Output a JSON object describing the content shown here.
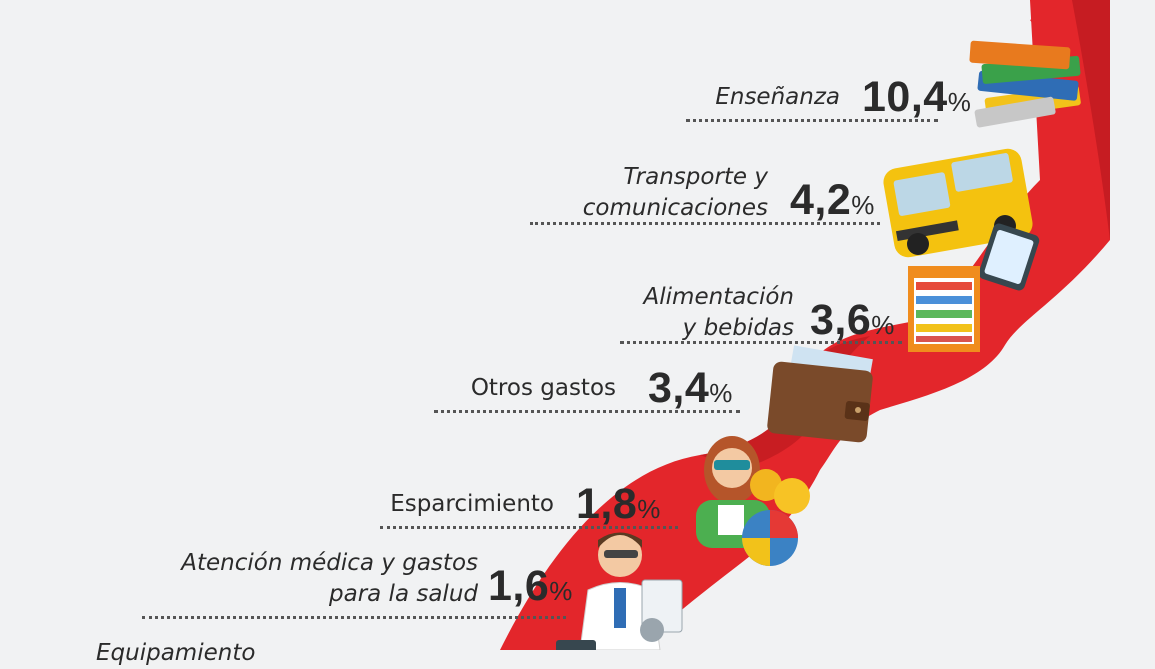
{
  "categories": [
    {
      "id": "ensenanza",
      "label_lines": [
        "Enseñanza"
      ],
      "value": "10,4",
      "unit": "%",
      "icon": "books-icon"
    },
    {
      "id": "transporte",
      "label_lines": [
        "Transporte y",
        "comunicaciones"
      ],
      "value": "4,2",
      "unit": "%",
      "icon": "school-bus-icon"
    },
    {
      "id": "alimentacion",
      "label_lines": [
        "Alimentación",
        "y bebidas"
      ],
      "value": "3,6",
      "unit": "%",
      "icon": "grocery-shelf-icon"
    },
    {
      "id": "otros",
      "label_lines": [
        "Otros gastos"
      ],
      "value": "3,4",
      "unit": "%",
      "icon": "wallet-icon"
    },
    {
      "id": "esparcimiento",
      "label_lines": [
        "Esparcimiento"
      ],
      "value": "1,8",
      "unit": "%",
      "icon": "cinema-woman-icon"
    },
    {
      "id": "salud",
      "label_lines": [
        "Atención médica y gastos",
        "para la salud"
      ],
      "value": "1,6",
      "unit": "%",
      "icon": "doctor-icon"
    },
    {
      "id": "equipamiento",
      "label_lines": [
        "Equipamiento"
      ],
      "value": "",
      "unit": "",
      "icon": "tablet-icon"
    }
  ],
  "colors": {
    "arrow": "#e3262b",
    "arrow_dark": "#b3161c",
    "background": "#f1f2f3",
    "text": "#2b2b2b"
  }
}
